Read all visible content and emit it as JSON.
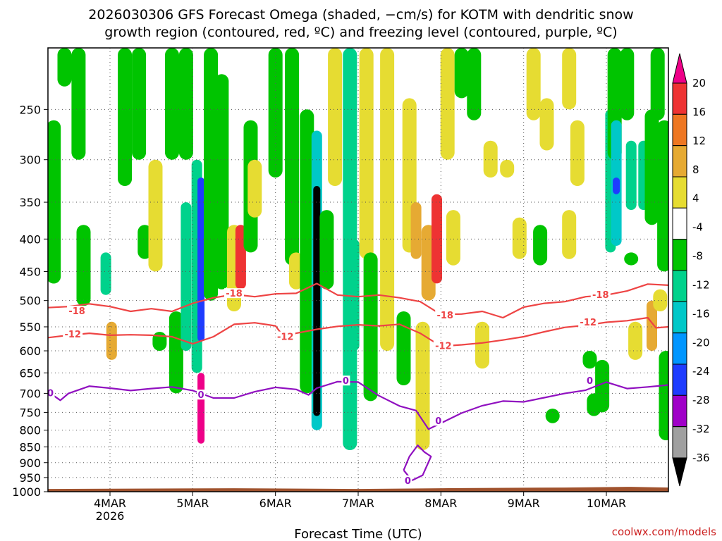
{
  "chart_data": {
    "type": "heatmap",
    "title_line1": "2026030306 GFS Forecast Omega (shaded, −cm/s) for KOTM with dendritic snow",
    "title_line2": "growth region (contoured, red, ºC) and freezing level (contoured, purple, ºC)",
    "xlabel": "Forecast Time (UTC)",
    "credit": "coolwx.com/models",
    "x_ticks": [
      {
        "day": 4,
        "label": "4MAR",
        "sublabel": "2026"
      },
      {
        "day": 5,
        "label": "5MAR",
        "sublabel": ""
      },
      {
        "day": 6,
        "label": "6MAR",
        "sublabel": ""
      },
      {
        "day": 7,
        "label": "7MAR",
        "sublabel": ""
      },
      {
        "day": 8,
        "label": "8MAR",
        "sublabel": ""
      },
      {
        "day": 9,
        "label": "9MAR",
        "sublabel": ""
      },
      {
        "day": 10,
        "label": "10MAR",
        "sublabel": ""
      }
    ],
    "xlim_days": [
      3.25,
      10.75
    ],
    "y_ticks": [
      250,
      300,
      350,
      400,
      450,
      500,
      550,
      600,
      650,
      700,
      750,
      800,
      850,
      900,
      950,
      1000
    ],
    "ylim_hpa": [
      200,
      1000
    ],
    "surface_hpa": 985,
    "colorbar": {
      "labels": [
        "20",
        "16",
        "12",
        "8",
        "4",
        "-4",
        "-8",
        "-12",
        "-16",
        "-20",
        "-24",
        "-28",
        "-32",
        "-36"
      ],
      "bands": [
        {
          "lo": 20,
          "hi": 99,
          "color": "#ee0088"
        },
        {
          "lo": 16,
          "hi": 20,
          "color": "#ee3333"
        },
        {
          "lo": 12,
          "hi": 16,
          "color": "#ee7722"
        },
        {
          "lo": 8,
          "hi": 12,
          "color": "#e6aa33"
        },
        {
          "lo": 4,
          "hi": 8,
          "color": "#e6dc32"
        },
        {
          "lo": -4,
          "hi": 4,
          "color": "#ffffff"
        },
        {
          "lo": -8,
          "hi": -4,
          "color": "#00c400"
        },
        {
          "lo": -12,
          "hi": -8,
          "color": "#00d28c"
        },
        {
          "lo": -16,
          "hi": -12,
          "color": "#00c8c8"
        },
        {
          "lo": -20,
          "hi": -16,
          "color": "#0096ff"
        },
        {
          "lo": -24,
          "hi": -20,
          "color": "#1e3cff"
        },
        {
          "lo": -28,
          "hi": -24,
          "color": "#a000c8"
        },
        {
          "lo": -32,
          "hi": -28,
          "color": "#a0a0a0"
        },
        {
          "lo": -99,
          "hi": -32,
          "color": "#000000"
        }
      ]
    },
    "omega_features": [
      {
        "day": 3.32,
        "p_top": 260,
        "p_bot": 470,
        "value": -6
      },
      {
        "day": 3.45,
        "p_top": 200,
        "p_bot": 230,
        "value": -6
      },
      {
        "day": 3.62,
        "p_top": 200,
        "p_bot": 300,
        "value": -8
      },
      {
        "day": 3.68,
        "p_top": 380,
        "p_bot": 510,
        "value": -6
      },
      {
        "day": 3.95,
        "p_top": 420,
        "p_bot": 490,
        "value": -10
      },
      {
        "day": 4.02,
        "p_top": 540,
        "p_bot": 620,
        "value": 11
      },
      {
        "day": 4.18,
        "p_top": 200,
        "p_bot": 330,
        "value": -6
      },
      {
        "day": 4.35,
        "p_top": 200,
        "p_bot": 300,
        "value": -6
      },
      {
        "day": 4.42,
        "p_top": 380,
        "p_bot": 430,
        "value": -6
      },
      {
        "day": 4.55,
        "p_top": 300,
        "p_bot": 450,
        "value": 6
      },
      {
        "day": 4.6,
        "p_top": 560,
        "p_bot": 600,
        "value": -6
      },
      {
        "day": 4.75,
        "p_top": 200,
        "p_bot": 300,
        "value": -6
      },
      {
        "day": 4.8,
        "p_top": 520,
        "p_bot": 700,
        "value": -6
      },
      {
        "day": 4.92,
        "p_top": 200,
        "p_bot": 300,
        "value": -6
      },
      {
        "day": 4.92,
        "p_top": 350,
        "p_bot": 600,
        "value": -10
      },
      {
        "day": 5.05,
        "p_top": 300,
        "p_bot": 650,
        "value": -12
      },
      {
        "day": 5.1,
        "p_top": 320,
        "p_bot": 580,
        "value": -24
      },
      {
        "day": 5.1,
        "p_top": 650,
        "p_bot": 840,
        "value": 21
      },
      {
        "day": 5.22,
        "p_top": 200,
        "p_bot": 500,
        "value": -8
      },
      {
        "day": 5.35,
        "p_top": 220,
        "p_bot": 480,
        "value": -6
      },
      {
        "day": 5.5,
        "p_top": 380,
        "p_bot": 520,
        "value": 6
      },
      {
        "day": 5.58,
        "p_top": 380,
        "p_bot": 480,
        "value": 18
      },
      {
        "day": 5.7,
        "p_top": 260,
        "p_bot": 420,
        "value": -6
      },
      {
        "day": 5.75,
        "p_top": 300,
        "p_bot": 370,
        "value": 6
      },
      {
        "day": 6.0,
        "p_top": 200,
        "p_bot": 320,
        "value": -6
      },
      {
        "day": 6.2,
        "p_top": 200,
        "p_bot": 440,
        "value": -6
      },
      {
        "day": 6.25,
        "p_top": 420,
        "p_bot": 480,
        "value": 6
      },
      {
        "day": 6.38,
        "p_top": 250,
        "p_bot": 700,
        "value": -8
      },
      {
        "day": 6.5,
        "p_top": 270,
        "p_bot": 800,
        "value": -14
      },
      {
        "day": 6.5,
        "p_top": 330,
        "p_bot": 760,
        "value": -40
      },
      {
        "day": 6.62,
        "p_top": 360,
        "p_bot": 480,
        "value": -6
      },
      {
        "day": 6.72,
        "p_top": 200,
        "p_bot": 330,
        "value": 6
      },
      {
        "day": 6.9,
        "p_top": 200,
        "p_bot": 860,
        "value": -9
      },
      {
        "day": 6.95,
        "p_top": 400,
        "p_bot": 600,
        "value": -12
      },
      {
        "day": 7.1,
        "p_top": 200,
        "p_bot": 430,
        "value": 6
      },
      {
        "day": 7.15,
        "p_top": 420,
        "p_bot": 720,
        "value": -6
      },
      {
        "day": 7.35,
        "p_top": 200,
        "p_bot": 600,
        "value": 6
      },
      {
        "day": 7.55,
        "p_top": 520,
        "p_bot": 680,
        "value": -6
      },
      {
        "day": 7.62,
        "p_top": 240,
        "p_bot": 420,
        "value": 6
      },
      {
        "day": 7.7,
        "p_top": 350,
        "p_bot": 430,
        "value": 10
      },
      {
        "day": 7.78,
        "p_top": 540,
        "p_bot": 860,
        "value": 6
      },
      {
        "day": 7.85,
        "p_top": 380,
        "p_bot": 500,
        "value": 9
      },
      {
        "day": 7.95,
        "p_top": 340,
        "p_bot": 470,
        "value": 16
      },
      {
        "day": 8.08,
        "p_top": 200,
        "p_bot": 300,
        "value": 6
      },
      {
        "day": 8.15,
        "p_top": 360,
        "p_bot": 440,
        "value": 6
      },
      {
        "day": 8.25,
        "p_top": 200,
        "p_bot": 240,
        "value": -6
      },
      {
        "day": 8.4,
        "p_top": 200,
        "p_bot": 260,
        "value": -6
      },
      {
        "day": 8.5,
        "p_top": 540,
        "p_bot": 640,
        "value": 6
      },
      {
        "day": 8.6,
        "p_top": 280,
        "p_bot": 320,
        "value": 6
      },
      {
        "day": 8.8,
        "p_top": 300,
        "p_bot": 320,
        "value": 6
      },
      {
        "day": 8.95,
        "p_top": 370,
        "p_bot": 430,
        "value": 6
      },
      {
        "day": 9.12,
        "p_top": 200,
        "p_bot": 260,
        "value": 6
      },
      {
        "day": 9.2,
        "p_top": 380,
        "p_bot": 440,
        "value": -6
      },
      {
        "day": 9.28,
        "p_top": 240,
        "p_bot": 290,
        "value": 6
      },
      {
        "day": 9.35,
        "p_top": 740,
        "p_bot": 780,
        "value": -6
      },
      {
        "day": 9.55,
        "p_top": 200,
        "p_bot": 250,
        "value": 6
      },
      {
        "day": 9.55,
        "p_top": 360,
        "p_bot": 430,
        "value": 6
      },
      {
        "day": 9.65,
        "p_top": 260,
        "p_bot": 330,
        "value": 6
      },
      {
        "day": 9.8,
        "p_top": 600,
        "p_bot": 640,
        "value": -6
      },
      {
        "day": 9.85,
        "p_top": 700,
        "p_bot": 760,
        "value": -6
      },
      {
        "day": 9.95,
        "p_top": 620,
        "p_bot": 750,
        "value": -7
      },
      {
        "day": 10.05,
        "p_top": 250,
        "p_bot": 420,
        "value": -10
      },
      {
        "day": 10.1,
        "p_top": 200,
        "p_bot": 300,
        "value": -8
      },
      {
        "day": 10.12,
        "p_top": 260,
        "p_bot": 410,
        "value": -14
      },
      {
        "day": 10.12,
        "p_top": 320,
        "p_bot": 340,
        "value": -22
      },
      {
        "day": 10.25,
        "p_top": 200,
        "p_bot": 260,
        "value": -6
      },
      {
        "day": 10.3,
        "p_top": 280,
        "p_bot": 360,
        "value": -10
      },
      {
        "day": 10.3,
        "p_top": 420,
        "p_bot": 440,
        "value": -6
      },
      {
        "day": 10.35,
        "p_top": 540,
        "p_bot": 620,
        "value": 6
      },
      {
        "day": 10.45,
        "p_top": 280,
        "p_bot": 360,
        "value": -10
      },
      {
        "day": 10.55,
        "p_top": 250,
        "p_bot": 380,
        "value": -6
      },
      {
        "day": 10.55,
        "p_top": 500,
        "p_bot": 600,
        "value": 10
      },
      {
        "day": 10.62,
        "p_top": 200,
        "p_bot": 260,
        "value": -6
      },
      {
        "day": 10.65,
        "p_top": 480,
        "p_bot": 520,
        "value": 6
      },
      {
        "day": 10.7,
        "p_top": 260,
        "p_bot": 450,
        "value": -6
      },
      {
        "day": 10.72,
        "p_top": 600,
        "p_bot": 830,
        "value": -6
      }
    ],
    "contours": [
      {
        "name": "-18",
        "color": "#ee4444",
        "label": "-18",
        "label_points": [
          {
            "day": 3.6,
            "p": 520
          },
          {
            "day": 5.5,
            "p": 488
          },
          {
            "day": 8.05,
            "p": 528
          },
          {
            "day": 9.93,
            "p": 490
          }
        ],
        "points": [
          [
            3.25,
            513
          ],
          [
            3.5,
            511
          ],
          [
            3.75,
            506
          ],
          [
            4.0,
            511
          ],
          [
            4.25,
            520
          ],
          [
            4.5,
            515
          ],
          [
            4.75,
            520
          ],
          [
            5.0,
            505
          ],
          [
            5.25,
            495
          ],
          [
            5.5,
            489
          ],
          [
            5.75,
            493
          ],
          [
            6.0,
            488
          ],
          [
            6.25,
            487
          ],
          [
            6.5,
            470
          ],
          [
            6.75,
            490
          ],
          [
            7.0,
            493
          ],
          [
            7.25,
            490
          ],
          [
            7.5,
            495
          ],
          [
            7.75,
            502
          ],
          [
            8.0,
            526
          ],
          [
            8.25,
            525
          ],
          [
            8.5,
            520
          ],
          [
            8.75,
            532
          ],
          [
            9.0,
            512
          ],
          [
            9.25,
            505
          ],
          [
            9.5,
            502
          ],
          [
            9.75,
            493
          ],
          [
            10.0,
            490
          ],
          [
            10.25,
            483
          ],
          [
            10.5,
            471
          ],
          [
            10.75,
            473
          ]
        ]
      },
      {
        "name": "-12",
        "color": "#ee4444",
        "label": "-12",
        "label_points": [
          {
            "day": 3.55,
            "p": 566
          },
          {
            "day": 6.12,
            "p": 571
          },
          {
            "day": 8.03,
            "p": 590
          },
          {
            "day": 9.78,
            "p": 542
          }
        ],
        "points": [
          [
            3.25,
            572
          ],
          [
            3.5,
            567
          ],
          [
            3.75,
            563
          ],
          [
            4.0,
            567
          ],
          [
            4.25,
            566
          ],
          [
            4.5,
            567
          ],
          [
            4.75,
            570
          ],
          [
            5.0,
            585
          ],
          [
            5.25,
            570
          ],
          [
            5.5,
            545
          ],
          [
            5.75,
            542
          ],
          [
            6.0,
            548
          ],
          [
            6.1,
            570
          ],
          [
            6.25,
            563
          ],
          [
            6.5,
            555
          ],
          [
            6.75,
            549
          ],
          [
            7.0,
            546
          ],
          [
            7.25,
            548
          ],
          [
            7.5,
            545
          ],
          [
            7.75,
            563
          ],
          [
            8.0,
            590
          ],
          [
            8.25,
            587
          ],
          [
            8.5,
            583
          ],
          [
            8.75,
            577
          ],
          [
            9.0,
            570
          ],
          [
            9.25,
            560
          ],
          [
            9.5,
            551
          ],
          [
            9.75,
            547
          ],
          [
            10.0,
            541
          ],
          [
            10.25,
            538
          ],
          [
            10.5,
            532
          ],
          [
            10.6,
            552
          ],
          [
            10.75,
            550
          ]
        ]
      },
      {
        "name": "0",
        "color": "#9010c0",
        "label": "0",
        "label_points": [
          {
            "day": 3.28,
            "p": 700
          },
          {
            "day": 5.1,
            "p": 705
          },
          {
            "day": 6.85,
            "p": 670
          },
          {
            "day": 7.97,
            "p": 775
          },
          {
            "day": 9.8,
            "p": 670
          }
        ],
        "points": [
          [
            3.3,
            703
          ],
          [
            3.4,
            718
          ],
          [
            3.5,
            700
          ],
          [
            3.75,
            682
          ],
          [
            4.0,
            687
          ],
          [
            4.25,
            693
          ],
          [
            4.5,
            688
          ],
          [
            4.75,
            684
          ],
          [
            5.0,
            693
          ],
          [
            5.25,
            712
          ],
          [
            5.5,
            712
          ],
          [
            5.75,
            696
          ],
          [
            6.0,
            685
          ],
          [
            6.25,
            690
          ],
          [
            6.4,
            704
          ],
          [
            6.5,
            687
          ],
          [
            6.75,
            671
          ],
          [
            7.0,
            672
          ],
          [
            7.25,
            706
          ],
          [
            7.5,
            733
          ],
          [
            7.7,
            745
          ],
          [
            7.85,
            797
          ],
          [
            8.0,
            780
          ],
          [
            8.25,
            752
          ],
          [
            8.5,
            732
          ],
          [
            8.75,
            720
          ],
          [
            9.0,
            722
          ],
          [
            9.25,
            711
          ],
          [
            9.5,
            700
          ],
          [
            9.75,
            692
          ],
          [
            10.0,
            672
          ],
          [
            10.25,
            688
          ],
          [
            10.5,
            684
          ],
          [
            10.75,
            679
          ]
        ]
      },
      {
        "name": "0-loop",
        "color": "#9010c0",
        "label": "0",
        "label_points": [
          {
            "day": 7.6,
            "p": 962
          }
        ],
        "points": [
          [
            7.55,
            925
          ],
          [
            7.65,
            960
          ],
          [
            7.78,
            942
          ],
          [
            7.88,
            880
          ],
          [
            7.8,
            866
          ],
          [
            7.72,
            845
          ],
          [
            7.62,
            880
          ],
          [
            7.55,
            925
          ]
        ]
      }
    ]
  }
}
